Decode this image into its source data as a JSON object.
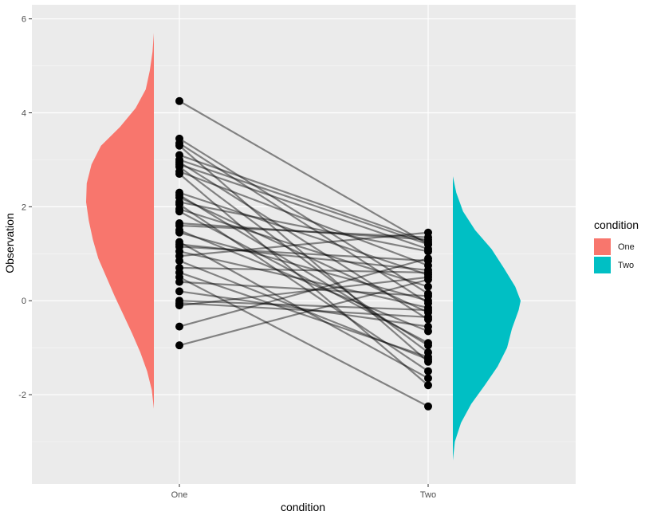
{
  "chart_data": {
    "type": "raincloud-paired",
    "xlabel": "condition",
    "ylabel": "Observation",
    "categories": [
      "One",
      "Two"
    ],
    "ylim": [
      -3.9,
      6.3
    ],
    "y_ticks": [
      -2,
      0,
      2,
      4,
      6
    ],
    "grid": true,
    "legend": {
      "title": "condition",
      "placement": "right",
      "entries": [
        {
          "label": "One",
          "color": "#F8766D"
        },
        {
          "label": "Two",
          "color": "#00BFC4"
        }
      ]
    },
    "densities": [
      {
        "category": "One",
        "side": "left",
        "color": "#F8766D",
        "profile": [
          [
            -2.3,
            0
          ],
          [
            -1.9,
            0.03
          ],
          [
            -1.5,
            0.1
          ],
          [
            -1.1,
            0.2
          ],
          [
            -0.7,
            0.32
          ],
          [
            -0.3,
            0.45
          ],
          [
            0.1,
            0.58
          ],
          [
            0.5,
            0.7
          ],
          [
            0.9,
            0.82
          ],
          [
            1.3,
            0.9
          ],
          [
            1.7,
            0.96
          ],
          [
            2.1,
            1.0
          ],
          [
            2.5,
            0.99
          ],
          [
            2.9,
            0.92
          ],
          [
            3.3,
            0.78
          ],
          [
            3.7,
            0.5
          ],
          [
            4.1,
            0.27
          ],
          [
            4.5,
            0.12
          ],
          [
            4.9,
            0.06
          ],
          [
            5.3,
            0.02
          ],
          [
            5.7,
            0
          ]
        ]
      },
      {
        "category": "Two",
        "side": "right",
        "color": "#00BFC4",
        "profile": [
          [
            -3.4,
            0
          ],
          [
            -3.0,
            0.03
          ],
          [
            -2.6,
            0.12
          ],
          [
            -2.2,
            0.27
          ],
          [
            -1.8,
            0.47
          ],
          [
            -1.4,
            0.66
          ],
          [
            -1.0,
            0.8
          ],
          [
            -0.6,
            0.87
          ],
          [
            -0.2,
            0.97
          ],
          [
            0.0,
            1.0
          ],
          [
            0.3,
            0.92
          ],
          [
            0.7,
            0.75
          ],
          [
            1.1,
            0.57
          ],
          [
            1.5,
            0.33
          ],
          [
            1.9,
            0.15
          ],
          [
            2.3,
            0.05
          ],
          [
            2.65,
            0
          ]
        ]
      }
    ],
    "pairs": [
      [
        4.25,
        1.2
      ],
      [
        3.45,
        0.15
      ],
      [
        3.35,
        -0.05
      ],
      [
        3.3,
        -1.3
      ],
      [
        3.1,
        1.25
      ],
      [
        2.95,
        -0.4
      ],
      [
        2.9,
        1.1
      ],
      [
        2.85,
        -1.1
      ],
      [
        2.75,
        0.75
      ],
      [
        2.7,
        -1.8
      ],
      [
        2.3,
        0.55
      ],
      [
        2.2,
        -0.25
      ],
      [
        2.1,
        1.05
      ],
      [
        2.05,
        -1.5
      ],
      [
        1.95,
        0.3
      ],
      [
        1.9,
        -0.9
      ],
      [
        1.65,
        1.3
      ],
      [
        1.5,
        -0.65
      ],
      [
        1.45,
        0.0
      ],
      [
        1.25,
        -1.65
      ],
      [
        1.15,
        0.85
      ],
      [
        1.05,
        -0.15
      ],
      [
        0.95,
        1.45
      ],
      [
        0.85,
        -1.25
      ],
      [
        0.7,
        0.6
      ],
      [
        0.5,
        -2.25
      ],
      [
        0.4,
        0.1
      ],
      [
        0.2,
        -0.55
      ],
      [
        -0.05,
        -0.35
      ],
      [
        -0.1,
        0.5
      ],
      [
        -0.55,
        0.9
      ],
      [
        -0.95,
        0.45
      ],
      [
        3.0,
        1.2
      ],
      [
        2.25,
        -0.95
      ],
      [
        1.2,
        0.65
      ],
      [
        0.6,
        -1.2
      ],
      [
        1.6,
        1.35
      ],
      [
        0.0,
        -0.2
      ]
    ]
  }
}
